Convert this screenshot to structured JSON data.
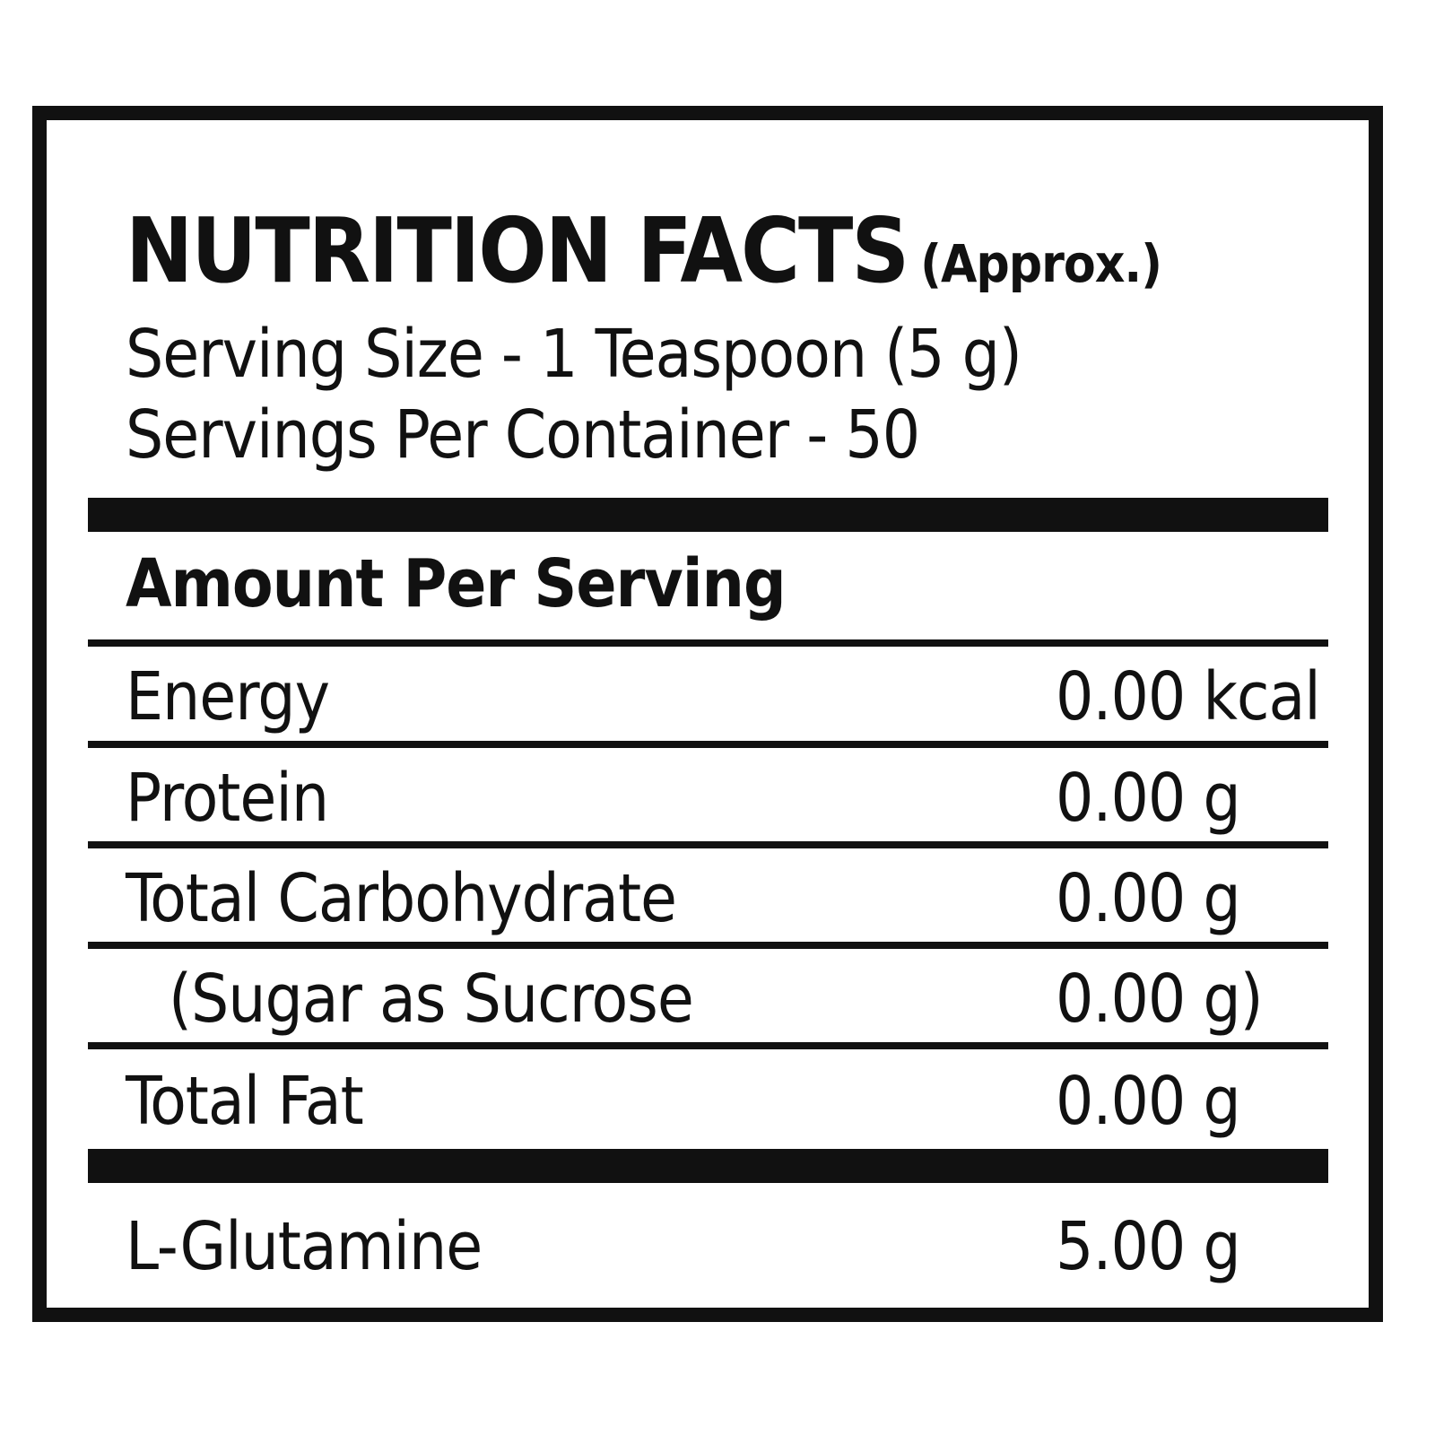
{
  "label": {
    "title": "NUTRITION FACTS",
    "title_note": "(Approx.)",
    "serving_size": "Serving Size - 1 Teaspoon (5 g)",
    "servings_per_container": "Servings Per Container - 50",
    "amount_header": "Amount Per Serving",
    "nutrients": [
      {
        "name": "Energy",
        "amount": "0.00 kcal"
      },
      {
        "name": "Protein",
        "amount": "0.00 g"
      },
      {
        "name": "Total Carbohydrate",
        "amount": "0.00 g"
      },
      {
        "name": "(Sugar as Sucrose",
        "amount": "0.00 g)"
      },
      {
        "name": "Total Fat",
        "amount": "0.00 g"
      }
    ],
    "extra": {
      "name": "L-Glutamine",
      "amount": "5.00 g"
    }
  }
}
